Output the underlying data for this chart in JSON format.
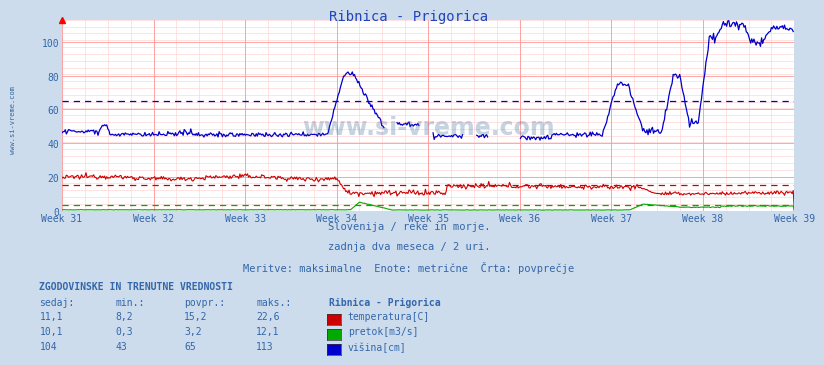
{
  "title": "Ribnica - Prigorica",
  "bg_color": "#ccdcec",
  "plot_bg_color": "#ffffff",
  "grid_fine_color": "#ffcccc",
  "grid_major_color": "#ff9999",
  "tick_color": "#3366aa",
  "title_color": "#2244bb",
  "week_labels": [
    "Week 31",
    "Week 32",
    "Week 33",
    "Week 34",
    "Week 35",
    "Week 36",
    "Week 37",
    "Week 38",
    "Week 39"
  ],
  "ylim": [
    0,
    113
  ],
  "yticks": [
    0,
    20,
    40,
    60,
    80,
    100
  ],
  "avg_temp": 15.2,
  "avg_pretok": 3.2,
  "avg_visina": 65,
  "color_temp": "#cc0000",
  "color_pretok": "#00aa00",
  "color_visina": "#0000cc",
  "subtitle1": "Slovenija / reke in morje.",
  "subtitle2": "zadnja dva meseca / 2 uri.",
  "subtitle3": "Meritve: maksimalne  Enote: metrične  Črta: povprečje",
  "table_title": "ZGODOVINSKE IN TRENUTNE VREDNOSTI",
  "col_headers": [
    "sedaj:",
    "min.:",
    "povpr.:",
    "maks.:"
  ],
  "station_name": "Ribnica - Prigorica",
  "row_temp": [
    "11,1",
    "8,2",
    "15,2",
    "22,6"
  ],
  "row_pretok": [
    "10,1",
    "0,3",
    "3,2",
    "12,1"
  ],
  "row_visina": [
    "104",
    "43",
    "65",
    "113"
  ],
  "label_temp": "temperatura[C]",
  "label_pretok": "pretok[m3/s]",
  "label_visina": "višina[cm]",
  "watermark": "www.si-vreme.com",
  "watermark_color": "#336699",
  "sidebar_text": "www.si-vreme.com"
}
